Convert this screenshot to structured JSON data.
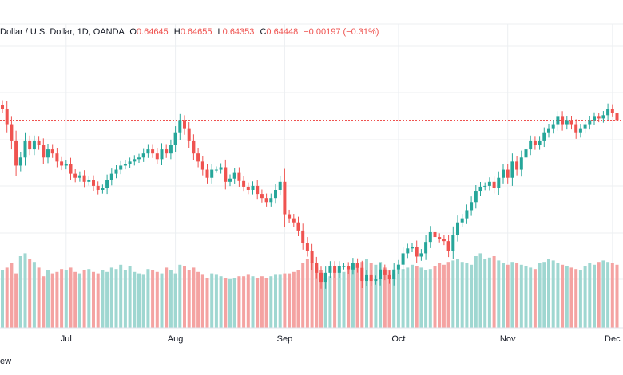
{
  "header": {
    "symbol_text": "Dollar / U.S. Dollar, 1D, OANDA",
    "o_label": "O",
    "o_value": "0.64645",
    "h_label": "H",
    "h_value": "0.64655",
    "l_label": "L",
    "l_value": "0.64353",
    "c_label": "C",
    "c_value": "0.64448",
    "change_text": "−0.00197 (−0.31%)"
  },
  "footer": {
    "watermark_fragment": "ew"
  },
  "colors": {
    "up": "#26a69a",
    "down": "#ef5350",
    "vol_up": "#9fd7d1",
    "vol_down": "#f4a3a2",
    "grid": "#eceff2",
    "text": "#131722",
    "ref_line": "#ef5350",
    "background": "#ffffff"
  },
  "chart_data": {
    "type": "candlestick",
    "instrument": "Dollar / U.S. Dollar",
    "interval": "1D",
    "source": "OANDA",
    "x_tick_labels": [
      "Jul",
      "Aug",
      "Sep",
      "Oct",
      "Nov",
      "Dec"
    ],
    "x_tick_indices": [
      14,
      38,
      62,
      87,
      111,
      134
    ],
    "ohlc_last": {
      "open": 0.64645,
      "high": 0.64655,
      "low": 0.64353,
      "close": 0.64448
    },
    "reference_line": 0.6445,
    "y_range": [
      0.625,
      0.6525
    ],
    "closes": [
      0.646,
      0.644,
      0.642,
      0.639,
      0.64,
      0.642,
      0.641,
      0.642,
      0.6415,
      0.64,
      0.641,
      0.6405,
      0.6395,
      0.639,
      0.6392,
      0.638,
      0.6375,
      0.6378,
      0.637,
      0.6372,
      0.6365,
      0.636,
      0.6362,
      0.6372,
      0.638,
      0.6385,
      0.639,
      0.6392,
      0.6395,
      0.6398,
      0.64,
      0.6405,
      0.641,
      0.6405,
      0.6398,
      0.641,
      0.6405,
      0.6415,
      0.643,
      0.6445,
      0.6435,
      0.642,
      0.6405,
      0.6395,
      0.6385,
      0.6375,
      0.6385,
      0.6385,
      0.6388,
      0.637,
      0.6374,
      0.6381,
      0.6371,
      0.6364,
      0.636,
      0.6365,
      0.6355,
      0.635,
      0.6345,
      0.635,
      0.636,
      0.637,
      0.633,
      0.6325,
      0.632,
      0.631,
      0.6295,
      0.6285,
      0.627,
      0.6258,
      0.6246,
      0.6258,
      0.6266,
      0.6258,
      0.6266,
      0.6266,
      0.6262,
      0.627,
      0.6264,
      0.6248,
      0.6255,
      0.6248,
      0.625,
      0.6262,
      0.6255,
      0.625,
      0.6262,
      0.6268,
      0.6282,
      0.6288,
      0.629,
      0.6278,
      0.6282,
      0.6296,
      0.6308,
      0.6302,
      0.63,
      0.6297,
      0.6285,
      0.6305,
      0.632,
      0.6325,
      0.6335,
      0.6345,
      0.6358,
      0.6364,
      0.6365,
      0.637,
      0.6362,
      0.6375,
      0.6385,
      0.6375,
      0.6395,
      0.6385,
      0.64,
      0.641,
      0.642,
      0.6415,
      0.642,
      0.643,
      0.6435,
      0.644,
      0.645,
      0.644,
      0.6445,
      0.644,
      0.643,
      0.6435,
      0.644,
      0.6445,
      0.645,
      0.6448,
      0.6452,
      0.646,
      0.6455,
      0.6445
    ],
    "volumes": [
      40,
      42,
      45,
      38,
      50,
      52,
      48,
      46,
      42,
      36,
      40,
      38,
      39,
      41,
      40,
      42,
      39,
      38,
      40,
      41,
      39,
      38,
      40,
      39,
      42,
      41,
      44,
      40,
      43,
      39,
      38,
      37,
      41,
      40,
      39,
      38,
      42,
      40,
      38,
      44,
      43,
      40,
      42,
      39,
      37,
      35,
      38,
      37,
      36,
      35,
      34,
      35,
      36,
      36,
      37,
      36,
      35,
      36,
      35,
      36,
      37,
      37,
      38,
      38,
      39,
      40,
      45,
      48,
      46,
      42,
      40,
      38,
      36,
      41,
      40,
      39,
      40,
      42,
      44,
      46,
      48,
      45,
      44,
      46,
      42,
      40,
      38,
      40,
      41,
      42,
      44,
      43,
      42,
      40,
      41,
      43,
      45,
      44,
      46,
      47,
      48,
      46,
      45,
      44,
      50,
      52,
      48,
      49,
      50,
      47,
      45,
      44,
      46,
      45,
      44,
      43,
      42,
      41,
      45,
      46,
      48,
      47,
      45,
      44,
      43,
      42,
      41,
      40,
      43,
      45,
      44,
      46,
      47,
      46,
      45,
      44
    ]
  }
}
